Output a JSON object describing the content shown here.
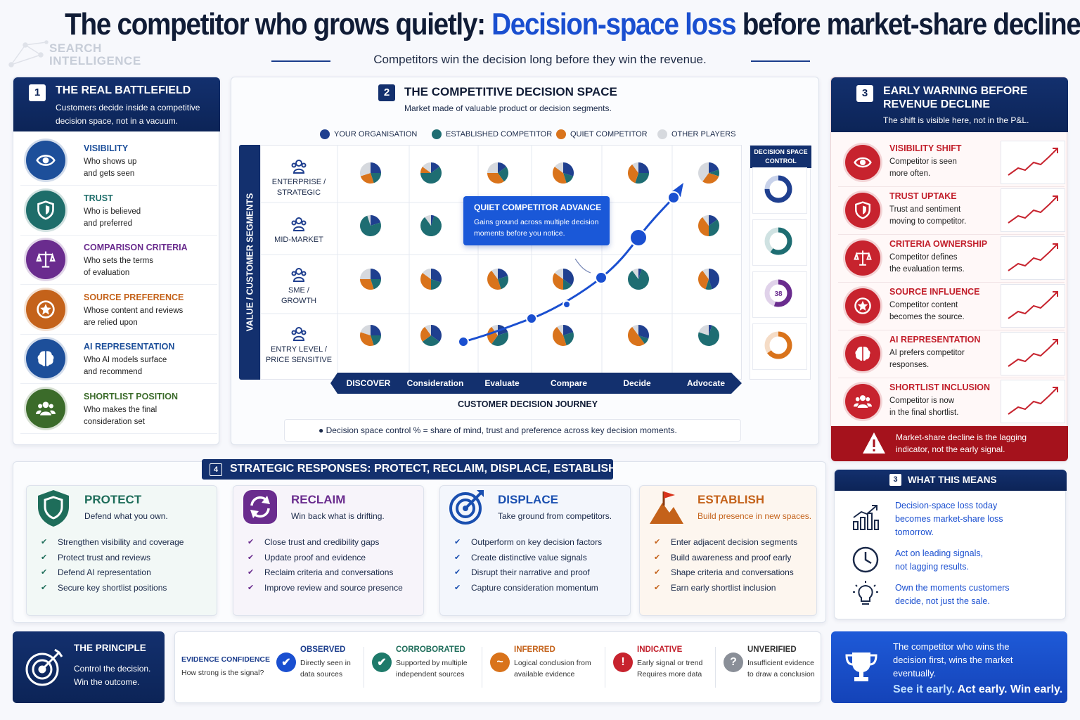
{
  "title": {
    "part1": "The competitor who grows quietly: ",
    "highlight": "Decision-space loss",
    "part2": " before market-share decline"
  },
  "logo": {
    "line1": "SEARCH",
    "line2": "INTELLIGENCE"
  },
  "subtitle": "Competitors win the decision long before they win the revenue.",
  "panel1": {
    "number": "1",
    "title": "THE REAL BATTLEFIELD",
    "desc": "Customers decide inside a competitive decision space, not in a vacuum.",
    "items": [
      {
        "title": "VISIBILITY",
        "l1": "Who shows up",
        "l2": "and gets seen",
        "color": "#1d4f9a",
        "icon": "eye-icon"
      },
      {
        "title": "TRUST",
        "l1": "Who is believed",
        "l2": "and preferred",
        "color": "#1e6d6a",
        "icon": "shield-icon"
      },
      {
        "title": "COMPARISON CRITERIA",
        "l1": "Who sets the terms",
        "l2": "of evaluation",
        "color": "#6a2c8e",
        "icon": "scales-icon"
      },
      {
        "title": "SOURCE PREFERENCE",
        "l1": "Whose content and reviews",
        "l2": "are relied upon",
        "color": "#c4621a",
        "icon": "star-badge-icon"
      },
      {
        "title": "AI REPRESENTATION",
        "l1": "Who AI models surface",
        "l2": "and recommend",
        "color": "#1d4f9a",
        "icon": "brain-icon"
      },
      {
        "title": "SHORTLIST POSITION",
        "l1": "Who makes the final",
        "l2": "consideration set",
        "color": "#3b6b2a",
        "icon": "people-icon"
      }
    ]
  },
  "panel2": {
    "number": "2",
    "title": "THE COMPETITIVE DECISION SPACE",
    "desc": "Market made of valuable product or decision segments.",
    "legend": [
      {
        "label": "YOUR ORGANISATION",
        "color": "#1f3f8f"
      },
      {
        "label": "ESTABLISHED COMPETITOR",
        "color": "#1e6d72"
      },
      {
        "label": "QUIET COMPETITOR",
        "color": "#d9731b"
      },
      {
        "label": "OTHER PLAYERS",
        "color": "#d6d9de"
      }
    ],
    "y_axis": "VALUE / CUSTOMER SEGMENTS",
    "segments": [
      {
        "l1": "ENTERPRISE /",
        "l2": "STRATEGIC"
      },
      {
        "l1": "MID-MARKET",
        "l2": ""
      },
      {
        "l1": "SME /",
        "l2": "GROWTH"
      },
      {
        "l1": "ENTRY LEVEL /",
        "l2": "PRICE SENSITIVE"
      }
    ],
    "journey": [
      "DISCOVER",
      "Consideration",
      "Evaluate",
      "Compare",
      "Decide",
      "Advocate"
    ],
    "x_axis": "CUSTOMER DECISION JOURNEY",
    "callout_title": "QUIET COMPETITOR ADVANCE",
    "callout_text": "Gains ground across multiple decision moments before you notice.",
    "control_label": "DECISION SPACE CONTROL",
    "control_values": [
      "",
      "",
      "38",
      ""
    ],
    "footnote": "Decision space control % = share of mind, trust and preference across key decision moments."
  },
  "panel3": {
    "number": "3",
    "title": "EARLY WARNING BEFORE REVENUE DECLINE",
    "desc": "The shift is visible here, not in the P&L.",
    "items": [
      {
        "title": "VISIBILITY SHIFT",
        "l1": "Competitor is seen",
        "l2": "more often.",
        "icon": "eye-icon"
      },
      {
        "title": "TRUST UPTAKE",
        "l1": "Trust and sentiment",
        "l2": "moving to competitor.",
        "icon": "shield-icon"
      },
      {
        "title": "CRITERIA OWNERSHIP",
        "l1": "Competitor defines",
        "l2": "the evaluation terms.",
        "icon": "scales-icon"
      },
      {
        "title": "SOURCE INFLUENCE",
        "l1": "Competitor content",
        "l2": "becomes the source.",
        "icon": "star-badge-icon"
      },
      {
        "title": "AI REPRESENTATION",
        "l1": "AI prefers competitor",
        "l2": "responses.",
        "icon": "brain-icon"
      },
      {
        "title": "SHORTLIST INCLUSION",
        "l1": "Competitor is now",
        "l2": "in the final shortlist.",
        "icon": "people-icon"
      }
    ],
    "warning": "Market-share decline is the lagging indicator, not the early signal."
  },
  "panel4": {
    "number": "4",
    "title": "STRATEGIC RESPONSES: PROTECT, RECLAIM, DISPLACE, ESTABLISH",
    "responses": [
      {
        "title": "PROTECT",
        "sub": "Defend what you own.",
        "color": "#1e6d5a",
        "bg": "#f2f8f6",
        "items": [
          "Strengthen visibility and coverage",
          "Protect trust and reviews",
          "Defend AI representation",
          "Secure key shortlist positions"
        ]
      },
      {
        "title": "RECLAIM",
        "sub": "Win back what is drifting.",
        "color": "#6a2c8e",
        "bg": "#f7f4fa",
        "items": [
          "Close trust and credibility gaps",
          "Update proof and evidence",
          "Reclaim criteria and conversations",
          "Improve review and source presence"
        ]
      },
      {
        "title": "DISPLACE",
        "sub": "Take ground from competitors.",
        "color": "#1a4fb0",
        "bg": "#f3f6fc",
        "items": [
          "Outperform on key decision factors",
          "Create distinctive value signals",
          "Disrupt their narrative and proof",
          "Capture consideration momentum"
        ]
      },
      {
        "title": "ESTABLISH",
        "sub": "Build presence in new spaces.",
        "color": "#c4621a",
        "bg": "#fdf6ef",
        "items": [
          "Enter adjacent decision segments",
          "Build awareness and proof early",
          "Shape criteria and conversations",
          "Earn early shortlist inclusion"
        ]
      }
    ]
  },
  "meaning": {
    "number": "3",
    "title": "WHAT THIS MEANS",
    "items": [
      {
        "l1": "Decision-space loss today",
        "l2": "becomes market-share loss",
        "l3": "tomorrow."
      },
      {
        "l1": "Act on leading signals,",
        "l2": "not lagging results.",
        "l3": ""
      },
      {
        "l1": "Own the moments customers",
        "l2": "decide, not just the sale.",
        "l3": ""
      }
    ]
  },
  "principle": {
    "title": "THE PRINCIPLE",
    "l1": "Control the decision.",
    "l2": "Win the outcome."
  },
  "evidence": {
    "label": "EVIDENCE CONFIDENCE",
    "question": "How strong is the signal?",
    "levels": [
      {
        "title": "OBSERVED",
        "l1": "Directly seen in",
        "l2": "data sources",
        "color": "#1a4fd0",
        "titlecolor": "#1a3c8c",
        "glyph": "✔"
      },
      {
        "title": "CORROBORATED",
        "l1": "Supported by multiple",
        "l2": "independent sources",
        "color": "#1e7a6a",
        "titlecolor": "#1e6d5a",
        "glyph": "✔"
      },
      {
        "title": "INFERRED",
        "l1": "Logical conclusion from",
        "l2": "available evidence",
        "color": "#d9731b",
        "titlecolor": "#c4621a",
        "glyph": "~"
      },
      {
        "title": "INDICATIVE",
        "l1": "Early signal or trend",
        "l2": "Requires more data",
        "color": "#c7232e",
        "titlecolor": "#c21e2a",
        "glyph": "!"
      },
      {
        "title": "UNVERIFIED",
        "l1": "Insufficient evidence",
        "l2": "to draw a conclusion",
        "color": "#8a8f98",
        "titlecolor": "#333",
        "glyph": "?"
      }
    ]
  },
  "closing": {
    "l1": "The competitor who wins the",
    "l2": "decision first, wins the market",
    "l3": "eventually.",
    "cta_a": "See it early.",
    "cta_b": " Act early. Win early."
  }
}
